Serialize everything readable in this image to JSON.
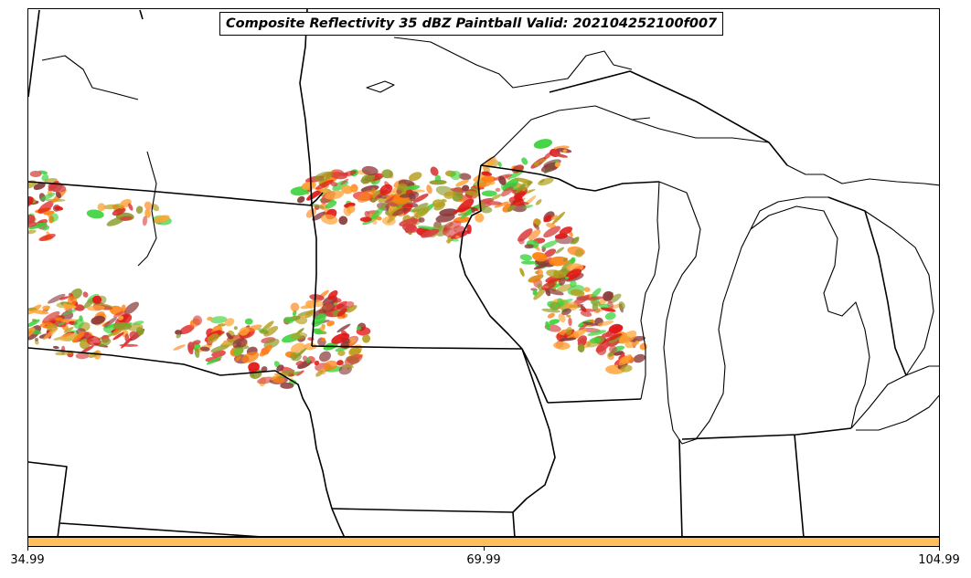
{
  "title": "Composite Reflectivity 35 dBZ Paintball Valid: 202104252100f007",
  "colorbar": {
    "color": "#ffc05a",
    "ticks": [
      "34.99",
      "69.99",
      "104.99"
    ]
  },
  "paintball_colors": [
    "#e01818",
    "#ff7f0e",
    "#ffa53a",
    "#3cd23c",
    "#8a9a28",
    "#8b3a3a",
    "#b5a020",
    "#d84040"
  ]
}
